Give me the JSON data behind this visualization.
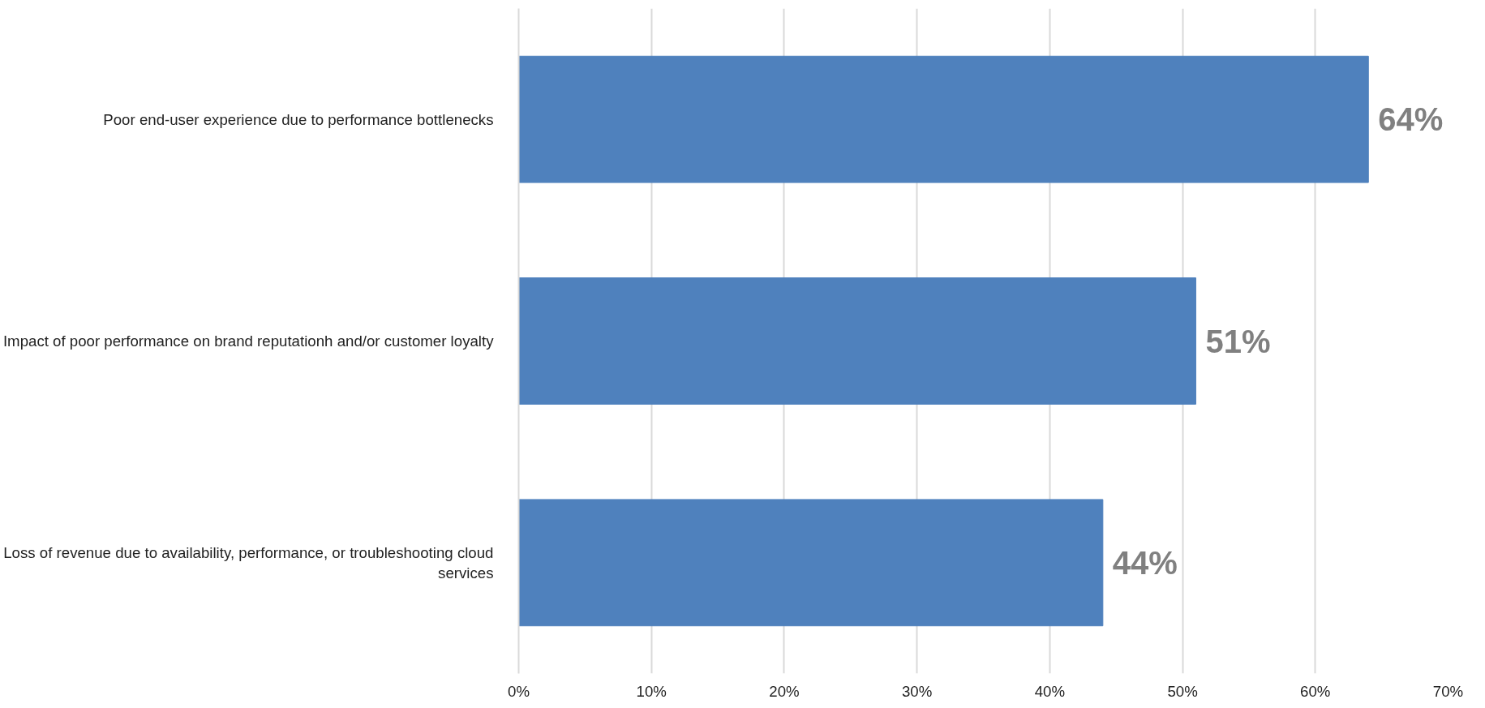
{
  "chart_data": {
    "type": "bar",
    "orientation": "horizontal",
    "categories": [
      "Poor end-user experience due to performance bottlenecks",
      "Impact of poor performance on brand reputationh and/or customer loyalty",
      "Loss of revenue due to availability, performance, or troubleshooting cloud services"
    ],
    "values": [
      64,
      51,
      44
    ],
    "color": "#4f81bd",
    "value_labels": [
      "64%",
      "51%",
      "44%"
    ],
    "xlim": [
      0,
      70
    ],
    "xticks": [
      {
        "value": 0,
        "label": "0%"
      },
      {
        "value": 10,
        "label": "10%"
      },
      {
        "value": 20,
        "label": "20%"
      },
      {
        "value": 30,
        "label": "30%"
      },
      {
        "value": 40,
        "label": "40%"
      },
      {
        "value": 50,
        "label": "50%"
      },
      {
        "value": 60,
        "label": "60%"
      },
      {
        "value": 70,
        "label": "70%"
      }
    ],
    "grid": "x"
  }
}
